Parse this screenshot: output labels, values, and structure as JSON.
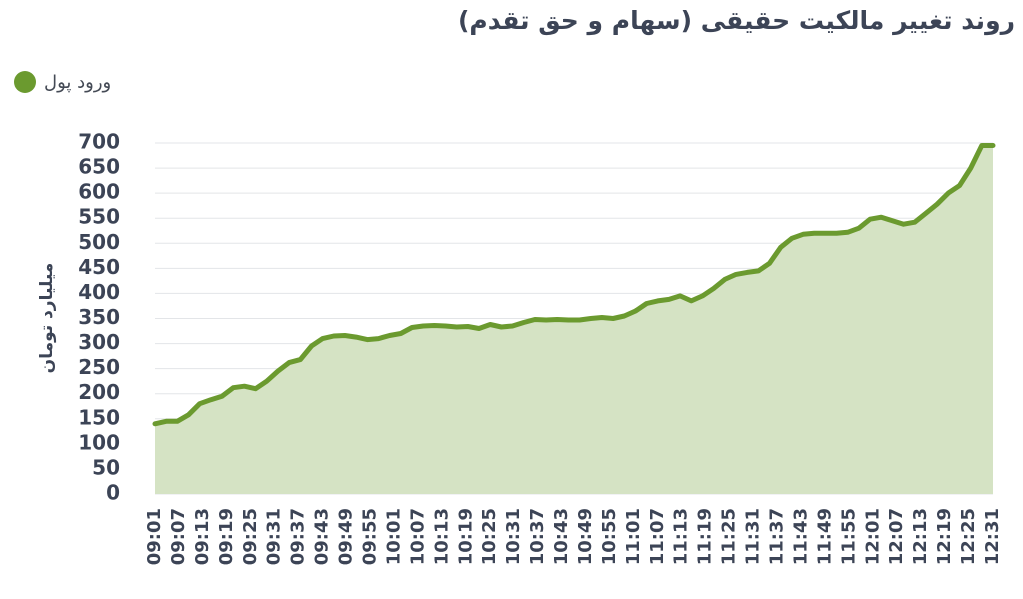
{
  "chart_data": {
    "type": "area",
    "title": "روند تغییر مالکیت حقیقی (سهام و حق تقدم)",
    "ylabel": "میلیارد تومان",
    "xlabel": "",
    "ylim": [
      0,
      700
    ],
    "y_ticks": [
      0,
      50,
      100,
      150,
      200,
      250,
      300,
      350,
      400,
      450,
      500,
      550,
      600,
      650,
      700
    ],
    "x_ticks": [
      "09:01",
      "09:07",
      "09:13",
      "09:19",
      "09:25",
      "09:31",
      "09:37",
      "09:43",
      "09:49",
      "09:55",
      "10:01",
      "10:07",
      "10:13",
      "10:19",
      "10:25",
      "10:31",
      "10:37",
      "10:43",
      "10:49",
      "10:55",
      "11:01",
      "11:07",
      "11:13",
      "11:19",
      "11:25",
      "11:31",
      "11:37",
      "11:43",
      "11:49",
      "11:55",
      "12:01",
      "12:07",
      "12:13",
      "12:19",
      "12:25",
      "12:31"
    ],
    "grid": true,
    "legend_position": "top-left",
    "series": [
      {
        "name": "ورود پول",
        "color": "#6b9a2f",
        "fill": "#d5e3c4",
        "values": [
          140,
          145,
          145,
          158,
          180,
          188,
          195,
          212,
          215,
          210,
          225,
          245,
          262,
          268,
          295,
          310,
          315,
          316,
          313,
          308,
          310,
          316,
          320,
          332,
          335,
          336,
          335,
          333,
          334,
          330,
          338,
          333,
          335,
          342,
          348,
          347,
          348,
          347,
          347,
          350,
          352,
          350,
          355,
          365,
          380,
          385,
          388,
          395,
          385,
          395,
          410,
          428,
          438,
          442,
          445,
          460,
          492,
          510,
          518,
          520,
          520,
          520,
          522,
          530,
          548,
          552,
          545,
          538,
          542,
          560,
          578,
          600,
          615,
          650,
          695,
          695
        ]
      }
    ]
  }
}
